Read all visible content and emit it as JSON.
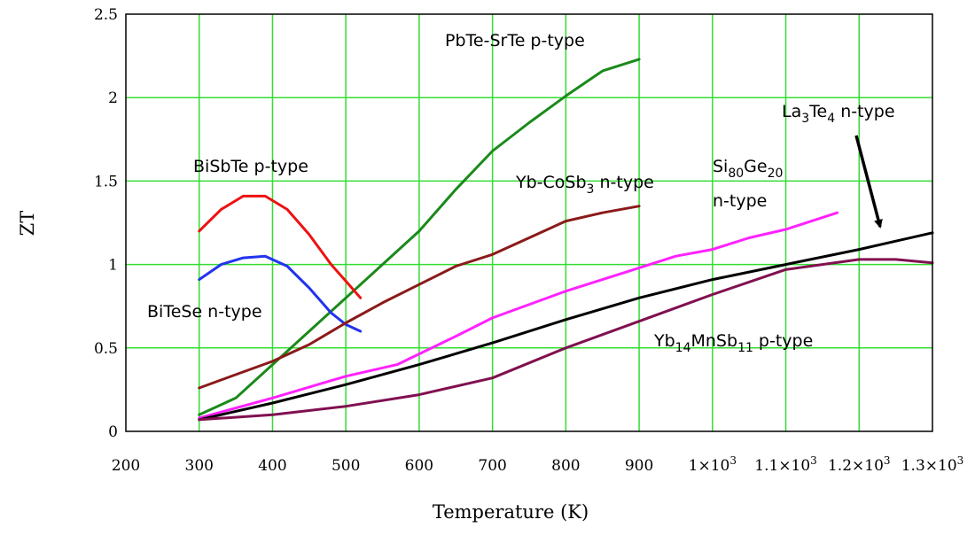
{
  "chart_data": {
    "type": "line",
    "title": "",
    "xlabel": "Temperature (K)",
    "ylabel": "ZT",
    "xlim": [
      200,
      1300
    ],
    "ylim": [
      0,
      2.5
    ],
    "grid": true,
    "x_ticks": [
      {
        "value": 200,
        "base": "200",
        "exp": ""
      },
      {
        "value": 300,
        "base": "300",
        "exp": ""
      },
      {
        "value": 400,
        "base": "400",
        "exp": ""
      },
      {
        "value": 500,
        "base": "500",
        "exp": ""
      },
      {
        "value": 600,
        "base": "600",
        "exp": ""
      },
      {
        "value": 700,
        "base": "700",
        "exp": ""
      },
      {
        "value": 800,
        "base": "800",
        "exp": ""
      },
      {
        "value": 900,
        "base": "900",
        "exp": ""
      },
      {
        "value": 1000,
        "base": "1×10",
        "exp": "3"
      },
      {
        "value": 1100,
        "base": "1.1×10",
        "exp": "3"
      },
      {
        "value": 1200,
        "base": "1.2×10",
        "exp": "3"
      },
      {
        "value": 1300,
        "base": "1.3×10",
        "exp": "3"
      }
    ],
    "y_ticks": [
      {
        "value": 0,
        "label": "0"
      },
      {
        "value": 0.5,
        "label": "0.5"
      },
      {
        "value": 1,
        "label": "1"
      },
      {
        "value": 1.5,
        "label": "1.5"
      },
      {
        "value": 2,
        "label": "2"
      },
      {
        "value": 2.5,
        "label": "2.5"
      }
    ],
    "series": [
      {
        "name": "PbTe-SrTe p-type",
        "color": "#1a8a1a",
        "x": [
          300,
          350,
          400,
          450,
          500,
          550,
          600,
          650,
          700,
          750,
          800,
          850,
          900
        ],
        "y": [
          0.1,
          0.2,
          0.4,
          0.6,
          0.8,
          1.0,
          1.2,
          1.45,
          1.68,
          1.85,
          2.01,
          2.16,
          2.23
        ]
      },
      {
        "name": "BiSbTe p-type",
        "color": "#ee1111",
        "x": [
          300,
          330,
          360,
          390,
          420,
          450,
          480,
          500,
          520
        ],
        "y": [
          1.2,
          1.33,
          1.41,
          1.41,
          1.33,
          1.18,
          1.0,
          0.9,
          0.8
        ]
      },
      {
        "name": "BiTeSe n-type",
        "color": "#2233ee",
        "x": [
          300,
          330,
          360,
          390,
          420,
          450,
          480,
          500,
          520
        ],
        "y": [
          0.91,
          1.0,
          1.04,
          1.05,
          0.99,
          0.86,
          0.71,
          0.64,
          0.6
        ]
      },
      {
        "name": "Yb-CoSb3 n-type",
        "color": "#8b1a1a",
        "x": [
          300,
          350,
          400,
          450,
          500,
          550,
          600,
          650,
          700,
          750,
          800,
          850,
          900
        ],
        "y": [
          0.26,
          0.34,
          0.42,
          0.52,
          0.65,
          0.77,
          0.88,
          0.99,
          1.06,
          1.16,
          1.26,
          1.31,
          1.35
        ]
      },
      {
        "name": "Si80Ge20 n-type",
        "color": "#ff22ff",
        "x": [
          300,
          400,
          500,
          570,
          650,
          700,
          800,
          900,
          950,
          1000,
          1050,
          1100,
          1170
        ],
        "y": [
          0.08,
          0.2,
          0.33,
          0.4,
          0.57,
          0.68,
          0.84,
          0.98,
          1.05,
          1.09,
          1.16,
          1.21,
          1.31
        ]
      },
      {
        "name": "La3Te4 n-type",
        "color": "#000000",
        "x": [
          300,
          400,
          500,
          600,
          700,
          800,
          900,
          1000,
          1100,
          1200,
          1300
        ],
        "y": [
          0.07,
          0.17,
          0.28,
          0.4,
          0.53,
          0.67,
          0.8,
          0.91,
          1.0,
          1.09,
          1.19
        ]
      },
      {
        "name": "Yb14MnSb11 p-type",
        "color": "#801050",
        "x": [
          300,
          400,
          500,
          600,
          700,
          800,
          900,
          1000,
          1100,
          1200,
          1250,
          1300
        ],
        "y": [
          0.07,
          0.1,
          0.15,
          0.22,
          0.32,
          0.5,
          0.66,
          0.82,
          0.97,
          1.03,
          1.03,
          1.01
        ]
      }
    ],
    "annotations": [
      {
        "parts": [
          {
            "t": "PbTe-SrTe p-type"
          }
        ]
      },
      {
        "parts": [
          {
            "t": "BiSbTe p-type"
          }
        ]
      },
      {
        "parts": [
          {
            "t": "BiTeSe n-type"
          }
        ]
      },
      {
        "parts": [
          {
            "t": "Yb-CoSb"
          },
          {
            "t": "3",
            "sub": true
          },
          {
            "t": " n-type"
          }
        ]
      },
      {
        "parts": [
          {
            "t": "Si"
          },
          {
            "t": "80",
            "sub": true
          },
          {
            "t": "Ge"
          },
          {
            "t": "20",
            "sub": true
          }
        ]
      },
      {
        "parts": [
          {
            "t": "n-type"
          }
        ]
      },
      {
        "parts": [
          {
            "t": "La"
          },
          {
            "t": "3",
            "sub": true
          },
          {
            "t": "Te"
          },
          {
            "t": "4",
            "sub": true
          },
          {
            "t": " n-type"
          }
        ]
      },
      {
        "parts": [
          {
            "t": "Yb"
          },
          {
            "t": "14",
            "sub": true
          },
          {
            "t": "MnSb"
          },
          {
            "t": "11",
            "sub": true
          },
          {
            "t": " p-type"
          }
        ]
      }
    ]
  }
}
